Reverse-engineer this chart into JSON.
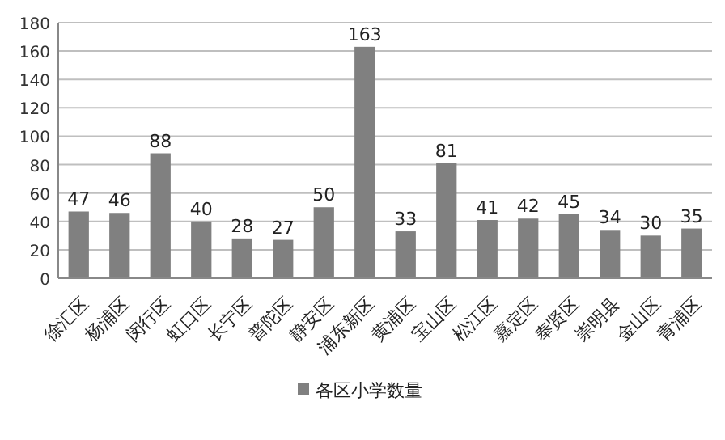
{
  "chart_data": {
    "type": "bar",
    "categories": [
      "徐汇区",
      "杨浦区",
      "闵行区",
      "虹口区",
      "长宁区",
      "普陀区",
      "静安区",
      "浦东新区",
      "黄浦区",
      "宝山区",
      "松江区",
      "嘉定区",
      "奉贤区",
      "崇明县",
      "金山区",
      "青浦区"
    ],
    "series": [
      {
        "name": "各区小学数量",
        "color": "#808080",
        "values": [
          47,
          46,
          88,
          40,
          28,
          27,
          50,
          163,
          33,
          81,
          41,
          42,
          45,
          34,
          30,
          35
        ]
      }
    ],
    "ylim": [
      0,
      180
    ],
    "yticks": [
      0,
      20,
      40,
      60,
      80,
      100,
      120,
      140,
      160,
      180
    ],
    "grid": "y",
    "legend": "bottom",
    "data_labels": true
  }
}
